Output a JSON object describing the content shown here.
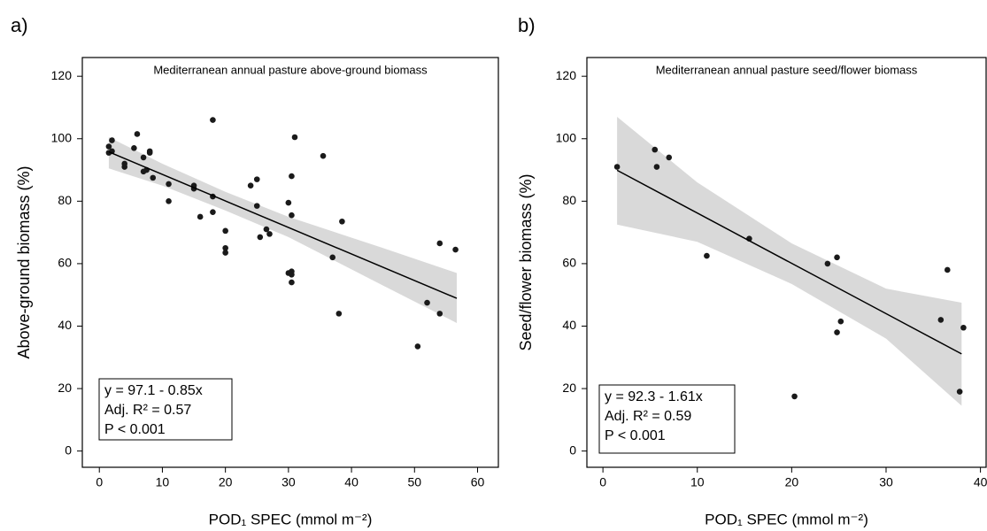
{
  "chart_data": [
    {
      "type": "scatter",
      "panel_label": "a)",
      "title": "Mediterranean annual pasture above-ground biomass",
      "xlabel": "POD₁ SPEC (mmol m⁻²)",
      "ylabel": "Above-ground biomass (%)",
      "annotations": [
        "y = 97.1 - 0.85x",
        "Adj. R² = 0.57",
        "P < 0.001"
      ],
      "color": "#1a1a1a",
      "fit_color": "#000000",
      "band_color": "#d9d9d9",
      "x": [
        1.5,
        1.5,
        2,
        2,
        4,
        4,
        6,
        5.5,
        7,
        7,
        7.5,
        8,
        8,
        8.5,
        11,
        11,
        15,
        15,
        16,
        18,
        18,
        18,
        20,
        20,
        20,
        24,
        25,
        25,
        25.5,
        26.5,
        27,
        30,
        30,
        30.5,
        30.5,
        30.5,
        30.5,
        30.5,
        31,
        35.5,
        37,
        38,
        38.5,
        50.5,
        52,
        54,
        54,
        56.5
      ],
      "values": [
        97.5,
        95.5,
        99.5,
        96,
        92,
        91,
        101.5,
        97,
        89.5,
        94,
        90,
        96,
        95.5,
        87.5,
        85.5,
        80,
        85,
        84,
        75,
        106,
        81.5,
        76.5,
        70.5,
        65,
        63.5,
        85,
        87,
        78.5,
        68.5,
        71,
        69.5,
        79.5,
        57,
        57.5,
        56.5,
        88,
        75.5,
        54,
        100.5,
        94.5,
        62,
        44,
        73.5,
        33.5,
        47.5,
        66.5,
        44,
        64.5
      ],
      "fit": {
        "x": [
          1.5,
          56.7
        ],
        "values": [
          95.8,
          48.9
        ]
      },
      "band": {
        "x": [
          1.5,
          10,
          20,
          30,
          45,
          56.7
        ],
        "lower": [
          90.5,
          85,
          77,
          68.5,
          53,
          41
        ],
        "upper": [
          100.5,
          92,
          83,
          75,
          65,
          57
        ]
      },
      "xlim": [
        -2.7,
        63.3
      ],
      "ylim": [
        -5.2,
        126
      ],
      "xticks": [
        0,
        10,
        20,
        30,
        40,
        50,
        60
      ],
      "yticks": [
        0,
        20,
        40,
        60,
        80,
        100,
        120
      ]
    },
    {
      "type": "scatter",
      "panel_label": "b)",
      "title": "Mediterranean annual pasture seed/flower biomass",
      "xlabel": "POD₁ SPEC (mmol m⁻²)",
      "ylabel": "Seed/flower biomass (%)",
      "annotations": [
        "y = 92.3 - 1.61x",
        "Adj. R² = 0.59",
        "P < 0.001"
      ],
      "color": "#1a1a1a",
      "fit_color": "#000000",
      "band_color": "#d9d9d9",
      "x": [
        1.5,
        5.5,
        5.7,
        7,
        11,
        15.5,
        20.3,
        23.8,
        24.8,
        24.8,
        25.2,
        35.8,
        36.5,
        37.8,
        38.2
      ],
      "values": [
        91,
        96.5,
        91,
        94,
        62.5,
        68,
        17.5,
        60,
        62,
        38,
        41.5,
        42,
        58,
        19,
        39.5
      ],
      "fit": {
        "x": [
          1.5,
          38
        ],
        "values": [
          89.9,
          31.1
        ]
      },
      "band": {
        "x": [
          1.5,
          10,
          20,
          30,
          38
        ],
        "lower": [
          72.5,
          67,
          53.5,
          36,
          14.5
        ],
        "upper": [
          107,
          86,
          66.5,
          52,
          47.5
        ]
      },
      "xlim": [
        -1.7,
        40.6
      ],
      "ylim": [
        -5.2,
        126
      ],
      "xticks": [
        0,
        10,
        20,
        30,
        40
      ],
      "yticks": [
        0,
        20,
        40,
        60,
        80,
        100,
        120
      ]
    }
  ]
}
